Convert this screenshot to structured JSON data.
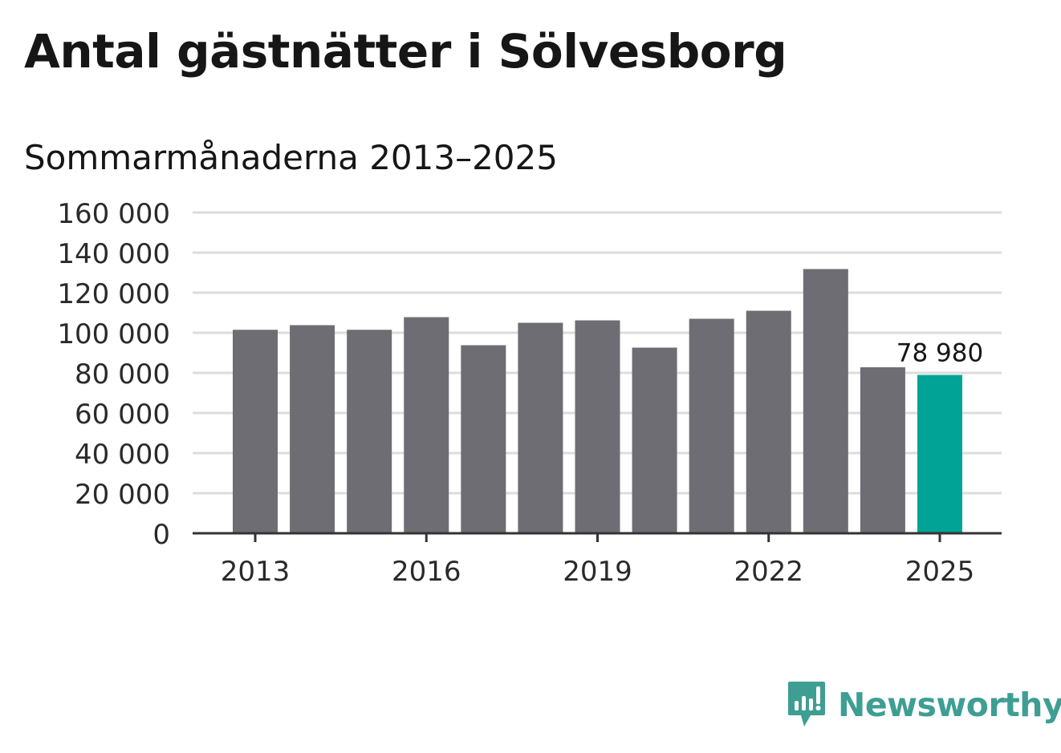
{
  "chart_data": {
    "type": "bar",
    "title": "Antal gästnätter i Sölvesborg",
    "subtitle": "Sommarmånaderna 2013–2025",
    "categories": [
      "2013",
      "2014",
      "2015",
      "2016",
      "2017",
      "2018",
      "2019",
      "2020",
      "2021",
      "2022",
      "2023",
      "2024",
      "2025"
    ],
    "values": [
      101500,
      103800,
      101500,
      107800,
      93800,
      105000,
      106200,
      92600,
      107000,
      111000,
      131800,
      82800,
      78980
    ],
    "y_ticks": [
      "0",
      "20 000",
      "40 000",
      "60 000",
      "80 000",
      "100 000",
      "120 000",
      "140 000",
      "160 000"
    ],
    "x_ticks": [
      "2013",
      "2016",
      "2019",
      "2022",
      "2025"
    ],
    "ylim": [
      0,
      160000
    ],
    "highlight_label": "78 980",
    "grid": true,
    "colors": {
      "bar": "#6d6d73",
      "highlight": "#00a396",
      "grid": "#dcdcdc",
      "axis": "#333333",
      "text": "#2a2a2a"
    }
  },
  "brand": {
    "name": "Newsworthy",
    "icon": "newsworthy-logo-icon",
    "color": "#3e9e93"
  }
}
